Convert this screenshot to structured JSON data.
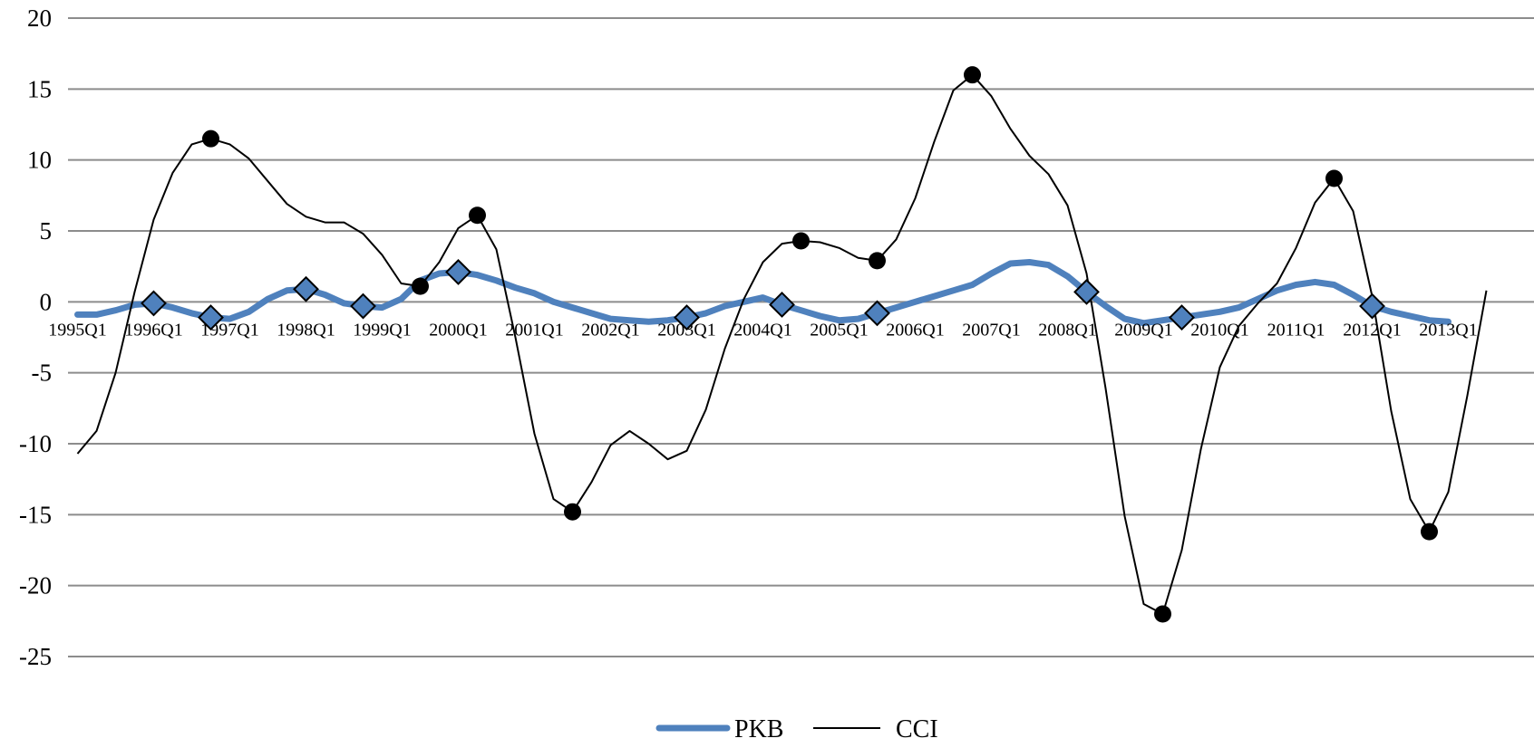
{
  "chart_data": {
    "type": "line",
    "title": "",
    "xlabel": "",
    "ylabel": "",
    "ylim": [
      -25,
      20
    ],
    "yticks": [
      "20",
      "15",
      "10",
      "5",
      "0",
      "-5",
      "-10",
      "-15",
      "-20",
      "-25"
    ],
    "ytick_values": [
      20,
      15,
      10,
      5,
      0,
      -5,
      -10,
      -15,
      -20,
      -25
    ],
    "grid": "horizontal",
    "legend_position": "bottom",
    "x_tick_labels": [
      "1995Q1",
      "1996Q1",
      "1997Q1",
      "1998Q1",
      "1999Q1",
      "2000Q1",
      "2001Q1",
      "2002Q1",
      "2003Q1",
      "2004Q1",
      "2005Q1",
      "2006Q1",
      "2007Q1",
      "2008Q1",
      "2009Q1",
      "2010Q1",
      "2011Q1",
      "2012Q1",
      "2013Q1"
    ],
    "x_tick_index": [
      0,
      4,
      8,
      12,
      16,
      20,
      24,
      28,
      32,
      36,
      40,
      44,
      48,
      52,
      56,
      60,
      64,
      68,
      72
    ],
    "quarters": 77,
    "series": [
      {
        "name": "PKB",
        "color": "#4f81bd",
        "style": "thick",
        "marker": "diamond",
        "values": [
          -0.9,
          -0.9,
          -0.6,
          -0.2,
          -0.1,
          -0.4,
          -0.8,
          -1.1,
          -1.2,
          -0.7,
          0.2,
          0.8,
          0.9,
          0.5,
          -0.1,
          -0.3,
          -0.4,
          0.2,
          1.5,
          2.0,
          2.1,
          1.9,
          1.5,
          1.0,
          0.6,
          0.0,
          -0.4,
          -0.8,
          -1.2,
          -1.3,
          -1.4,
          -1.3,
          -1.1,
          -0.8,
          -0.3,
          0.0,
          0.3,
          -0.2,
          -0.6,
          -1.0,
          -1.3,
          -1.2,
          -0.8,
          -0.4,
          0.0,
          0.4,
          0.8,
          1.2,
          2.0,
          2.7,
          2.8,
          2.6,
          1.8,
          0.7,
          -0.3,
          -1.2,
          -1.5,
          -1.3,
          -1.1,
          -0.9,
          -0.7,
          -0.4,
          0.2,
          0.8,
          1.2,
          1.4,
          1.2,
          0.5,
          -0.3,
          -0.7,
          -1.0,
          -1.3,
          -1.4
        ],
        "marker_index": [
          4,
          7,
          12,
          15,
          20,
          32,
          37,
          42,
          53,
          58,
          68
        ]
      },
      {
        "name": "CCI",
        "color": "#000000",
        "style": "thin",
        "marker": "circle",
        "values": [
          -10.7,
          -9.1,
          -5.0,
          0.7,
          5.8,
          9.1,
          11.1,
          11.5,
          11.1,
          10.1,
          8.5,
          6.9,
          6.0,
          5.6,
          5.6,
          4.8,
          3.3,
          1.3,
          1.1,
          2.8,
          5.2,
          6.1,
          3.7,
          -2.5,
          -9.3,
          -13.9,
          -14.8,
          -12.7,
          -10.1,
          -9.1,
          -10.0,
          -11.1,
          -10.5,
          -7.6,
          -3.3,
          0.2,
          2.8,
          4.1,
          4.3,
          4.2,
          3.8,
          3.1,
          2.9,
          4.4,
          7.3,
          11.3,
          14.9,
          16.0,
          14.5,
          12.2,
          10.3,
          9.0,
          6.8,
          2.0,
          -6.1,
          -15.1,
          -21.3,
          -22.0,
          -17.5,
          -10.4,
          -4.6,
          -1.7,
          -0.1,
          1.3,
          3.8,
          7.0,
          8.7,
          6.4,
          0.4,
          -7.7,
          -13.9,
          -16.2,
          -13.4,
          -6.6,
          0.8
        ],
        "marker_index": [
          7,
          18,
          21,
          26,
          38,
          42,
          47,
          57,
          66,
          71
        ]
      }
    ]
  }
}
